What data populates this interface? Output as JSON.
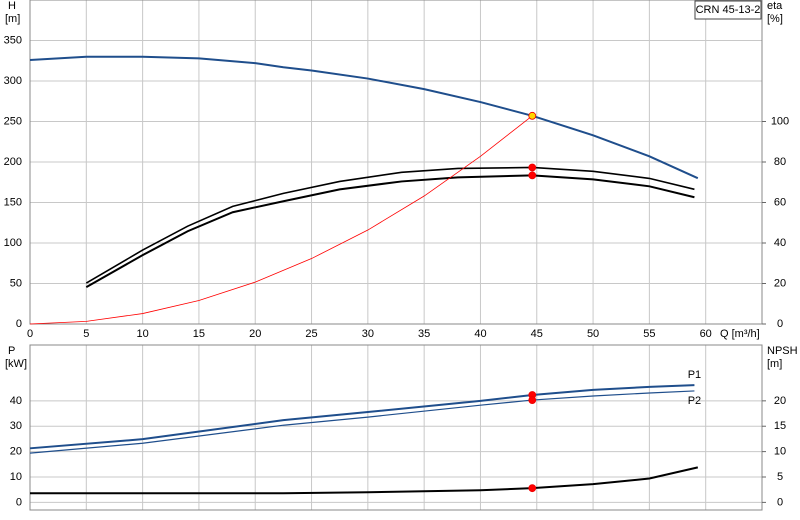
{
  "chart_data": [
    {
      "type": "line",
      "title": "CRN 45-13-2",
      "ylabel": "H",
      "yunit": "[m]",
      "y2label": "eta",
      "y2unit": "[%]",
      "xlabel": "Q [m³/h]",
      "xlim": [
        0,
        65
      ],
      "xticks": [
        0,
        5,
        10,
        15,
        20,
        25,
        30,
        35,
        40,
        45,
        50,
        55,
        60
      ],
      "xtick_labels": true,
      "ylim": [
        0,
        400
      ],
      "yticks": [
        0,
        50,
        100,
        150,
        200,
        250,
        300,
        350
      ],
      "y2lim": [
        0,
        160
      ],
      "y2ticks": [
        0,
        20,
        40,
        60,
        80,
        100
      ],
      "grid": true,
      "series": [
        {
          "color": "#1f4e8c",
          "line_width": 2,
          "x": [
            0,
            5,
            10,
            15,
            20,
            22.5,
            25,
            30,
            35,
            40,
            44.6,
            50,
            55,
            59.3
          ],
          "values": [
            326,
            330,
            330,
            328,
            322,
            317,
            313,
            303,
            290,
            274,
            257,
            233,
            207,
            180
          ]
        },
        {
          "color": "#000000",
          "line_width": 1.6,
          "axis": "y2",
          "x": [
            5,
            10,
            14,
            18,
            22.5,
            27.5,
            33,
            38,
            44.6,
            50,
            55,
            59
          ],
          "values": [
            20.2,
            36.5,
            48.3,
            58.1,
            64.5,
            70.4,
            74.9,
            76.8,
            77.3,
            75.4,
            71.9,
            66.5
          ]
        },
        {
          "color": "#000000",
          "line_width": 2,
          "axis": "y2",
          "x": [
            5,
            10,
            14,
            18,
            22.5,
            27.5,
            33,
            38,
            44.6,
            50,
            55,
            59
          ],
          "values": [
            18.2,
            34,
            45.8,
            55.2,
            60.6,
            66.5,
            70.4,
            72.4,
            73.4,
            71.4,
            68,
            62.6
          ]
        },
        {
          "color": "#ff0000",
          "line_width": 0.8,
          "x": [
            0,
            5,
            10,
            15,
            20,
            25,
            30,
            35,
            40,
            44.6
          ],
          "values": [
            0,
            3.2,
            12.9,
            29,
            51.7,
            80.8,
            116,
            158,
            207,
            257
          ]
        }
      ],
      "points": [
        {
          "x": 44.6,
          "y": 257,
          "color": "#ffd700"
        },
        {
          "x": 44.6,
          "y": 77.3,
          "axis": "y2",
          "color": "#ff0000"
        },
        {
          "x": 44.6,
          "y": 73.4,
          "axis": "y2",
          "color": "#ff0000"
        }
      ]
    },
    {
      "type": "line",
      "ylabel": "P",
      "yunit": "[kW]",
      "y2label": "NPSH",
      "y2unit": "[m]",
      "xlim": [
        0,
        65
      ],
      "xticks": [
        0,
        5,
        10,
        15,
        20,
        25,
        30,
        35,
        40,
        45,
        50,
        55,
        60
      ],
      "xtick_labels": false,
      "ylim": [
        -3,
        62
      ],
      "yticks": [
        0,
        10,
        20,
        30,
        40
      ],
      "y2lim": [
        -1.5,
        31
      ],
      "y2ticks": [
        0,
        5,
        10,
        15,
        20
      ],
      "grid": true,
      "series": [
        {
          "name": "P1",
          "color": "#1f4e8c",
          "line_width": 2,
          "x": [
            0,
            10,
            22.5,
            30,
            40,
            44.6,
            50,
            55,
            59
          ],
          "values": [
            21.3,
            24.9,
            32.4,
            35.6,
            40,
            42.3,
            44.3,
            45.5,
            46.2
          ]
        },
        {
          "name": "P2",
          "color": "#1f4e8c",
          "line_width": 1.2,
          "x": [
            0,
            10,
            22.5,
            30,
            40,
            44.6,
            50,
            55,
            59
          ],
          "values": [
            19.4,
            23.3,
            30.4,
            33.6,
            38.3,
            40.3,
            41.9,
            43.1,
            43.9
          ]
        },
        {
          "color": "#000000",
          "line_width": 2,
          "axis": "y2",
          "x": [
            0,
            10,
            22.5,
            30,
            35,
            40,
            44.6,
            50,
            55,
            59.3
          ],
          "values": [
            1.8,
            1.8,
            1.8,
            2,
            2.2,
            2.4,
            2.8,
            3.6,
            4.7,
            6.9
          ]
        }
      ],
      "points": [
        {
          "x": 44.6,
          "y": 42.3,
          "color": "#ff0000"
        },
        {
          "x": 44.6,
          "y": 40.3,
          "color": "#ff0000"
        },
        {
          "x": 44.6,
          "y": 2.8,
          "axis": "y2",
          "color": "#ff0000"
        }
      ]
    }
  ]
}
